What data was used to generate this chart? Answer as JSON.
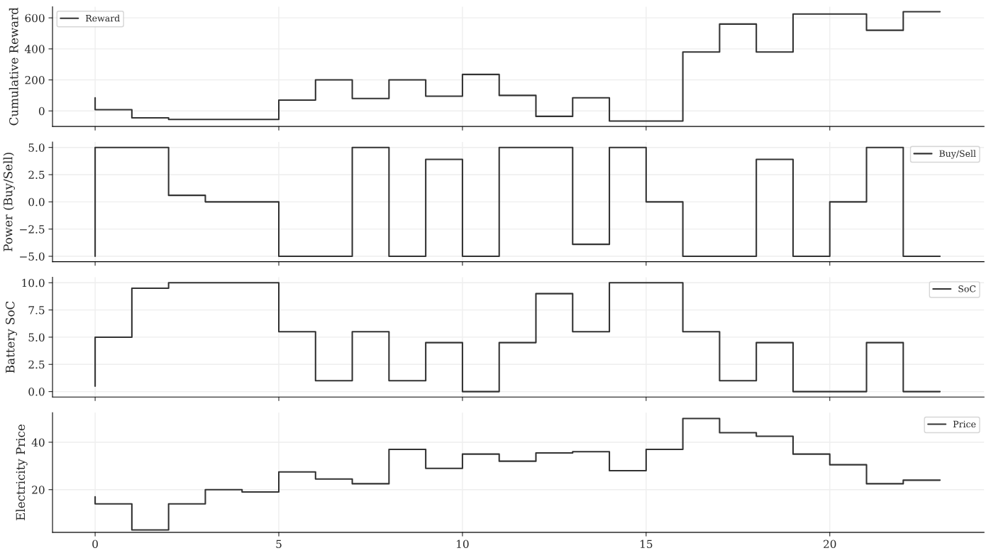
{
  "chart_data": [
    {
      "type": "step",
      "ylabel": "Cumulative Reward",
      "x": [
        0,
        1,
        2,
        3,
        4,
        5,
        6,
        7,
        8,
        9,
        10,
        11,
        12,
        13,
        14,
        15,
        16,
        17,
        18,
        19,
        20,
        21,
        22,
        23
      ],
      "xlim": [
        -1.16,
        24.2
      ],
      "xticks": [
        0,
        5,
        10,
        15,
        20
      ],
      "ylim": [
        -100,
        672
      ],
      "yticks": [
        0,
        200,
        400,
        600
      ],
      "grid": true,
      "legend": "top left",
      "tick_labels": "y",
      "series": [
        {
          "name": "Reward",
          "color": "#333333",
          "values": [
            85,
            8,
            -45,
            -55,
            -55,
            -55,
            70,
            200,
            80,
            200,
            95,
            235,
            100,
            -35,
            85,
            -65,
            -65,
            380,
            560,
            380,
            625,
            625,
            520,
            640
          ]
        }
      ]
    },
    {
      "type": "step",
      "ylabel": "Power (Buy/Sell)",
      "x": [
        0,
        1,
        2,
        3,
        4,
        5,
        6,
        7,
        8,
        9,
        10,
        11,
        12,
        13,
        14,
        15,
        16,
        17,
        18,
        19,
        20,
        21,
        22,
        23
      ],
      "xlim": [
        -1.16,
        24.2
      ],
      "xticks": [
        0,
        5,
        10,
        15,
        20
      ],
      "ylim": [
        -5.5,
        5.5
      ],
      "yticks": [
        {
          "value": -5,
          "label": "−5.0"
        },
        {
          "value": -2.5,
          "label": "−2.5"
        },
        {
          "value": 0,
          "label": "0.0"
        },
        {
          "value": 2.5,
          "label": "2.5"
        },
        {
          "value": 5,
          "label": "5.0"
        }
      ],
      "grid": true,
      "legend": "top right",
      "tick_labels": "y",
      "series": [
        {
          "name": "Buy/Sell",
          "color": "#333333",
          "values": [
            -5,
            5,
            5,
            0.6,
            0,
            0,
            -5,
            -5,
            5,
            -5,
            3.9,
            -5,
            5,
            5,
            -3.9,
            5,
            0,
            -5,
            -5,
            3.9,
            -5,
            0,
            5,
            -5
          ]
        }
      ]
    },
    {
      "type": "step",
      "ylabel": "Battery SoC",
      "x": [
        0,
        1,
        2,
        3,
        4,
        5,
        6,
        7,
        8,
        9,
        10,
        11,
        12,
        13,
        14,
        15,
        16,
        17,
        18,
        19,
        20,
        21,
        22,
        23
      ],
      "xlim": [
        -1.16,
        24.2
      ],
      "xticks": [
        0,
        5,
        10,
        15,
        20
      ],
      "ylim": [
        -0.5,
        10.5
      ],
      "yticks": [
        {
          "value": 0,
          "label": "0.0"
        },
        {
          "value": 2.5,
          "label": "2.5"
        },
        {
          "value": 5,
          "label": "5.0"
        },
        {
          "value": 7.5,
          "label": "7.5"
        },
        {
          "value": 10,
          "label": "10.0"
        }
      ],
      "grid": true,
      "legend": "top right",
      "tick_labels": "y",
      "series": [
        {
          "name": "SoC",
          "color": "#333333",
          "values": [
            0.5,
            5,
            9.5,
            10,
            10,
            10,
            5.5,
            1,
            5.5,
            1,
            4.5,
            0,
            4.5,
            9,
            5.5,
            10,
            10,
            5.5,
            1,
            4.5,
            0,
            0,
            4.5,
            0
          ]
        }
      ]
    },
    {
      "type": "step",
      "ylabel": "Electricity Price",
      "x": [
        0,
        1,
        2,
        3,
        4,
        5,
        6,
        7,
        8,
        9,
        10,
        11,
        12,
        13,
        14,
        15,
        16,
        17,
        18,
        19,
        20,
        21,
        22,
        23
      ],
      "xlim": [
        -1.16,
        24.2
      ],
      "xticks": [
        0,
        5,
        10,
        15,
        20
      ],
      "ylim": [
        2,
        52.5
      ],
      "yticks": [
        20,
        40
      ],
      "grid": true,
      "legend": "top right",
      "series": [
        {
          "name": "Price",
          "color": "#333333",
          "values": [
            17,
            14,
            3,
            14,
            20,
            19,
            27.5,
            24.5,
            22.5,
            37,
            29,
            35,
            32,
            35.5,
            36,
            28,
            37,
            50,
            44,
            42.5,
            35,
            30.5,
            22.5,
            24
          ]
        }
      ]
    }
  ]
}
